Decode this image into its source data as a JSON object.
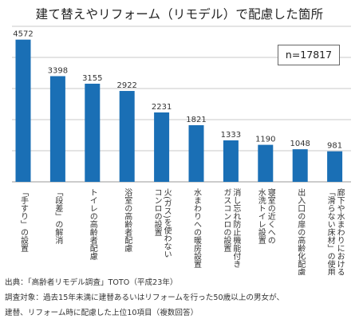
{
  "chart_data": {
    "type": "bar",
    "title": "建て替えやリフォーム（リモデル）で配慮した箇所",
    "n_label": "n=17817",
    "categories": [
      "「手すり」の設置",
      "「段差」の解消",
      "トイレの高齢者配慮",
      "浴室の高齢者配慮",
      "火(ガス)を使わないコンロの設置",
      "水まわりへの暖房設置",
      "消し忘れ防止機能付きガスコンロの設置",
      "寝室の近くへの水洗トイレ設置",
      "出入口の扉の高齢化配慮",
      "廊下や水まわりにおける、「滑らない床材」の使用"
    ],
    "category_lines": [
      [
        "「手すり」の設置"
      ],
      [
        "「段差」の解消"
      ],
      [
        "トイレの高齢者配慮"
      ],
      [
        "浴室の高齢者配慮"
      ],
      [
        "火(ガス)を使わない",
        "コンロの設置"
      ],
      [
        "水まわりへの暖房設置"
      ],
      [
        "消し忘れ防止機能付き",
        "ガスコンロの設置"
      ],
      [
        "寝室の近くへの",
        "水洗トイレ設置"
      ],
      [
        "出入口の扉の高齢化配慮"
      ],
      [
        "廊下や水まわりにおける、",
        "「滑らない床材」の使用"
      ]
    ],
    "values": [
      4572,
      3398,
      3155,
      2922,
      2231,
      1821,
      1333,
      1190,
      1048,
      981
    ],
    "ylim": [
      0,
      5000
    ],
    "grid": true,
    "bar_color": "#1a6fb5",
    "grid_color": "#c8c8c8"
  },
  "footer": {
    "source": "出典：「高齢者リモデル調査」TOTO（平成23年）",
    "note_line1": "調査対象：過去15年未満に建替あるいはリフォームを行った50歳以上の男女が、",
    "note_line2": "建替、リフォーム時に配慮した上位10項目（複数回答）"
  }
}
